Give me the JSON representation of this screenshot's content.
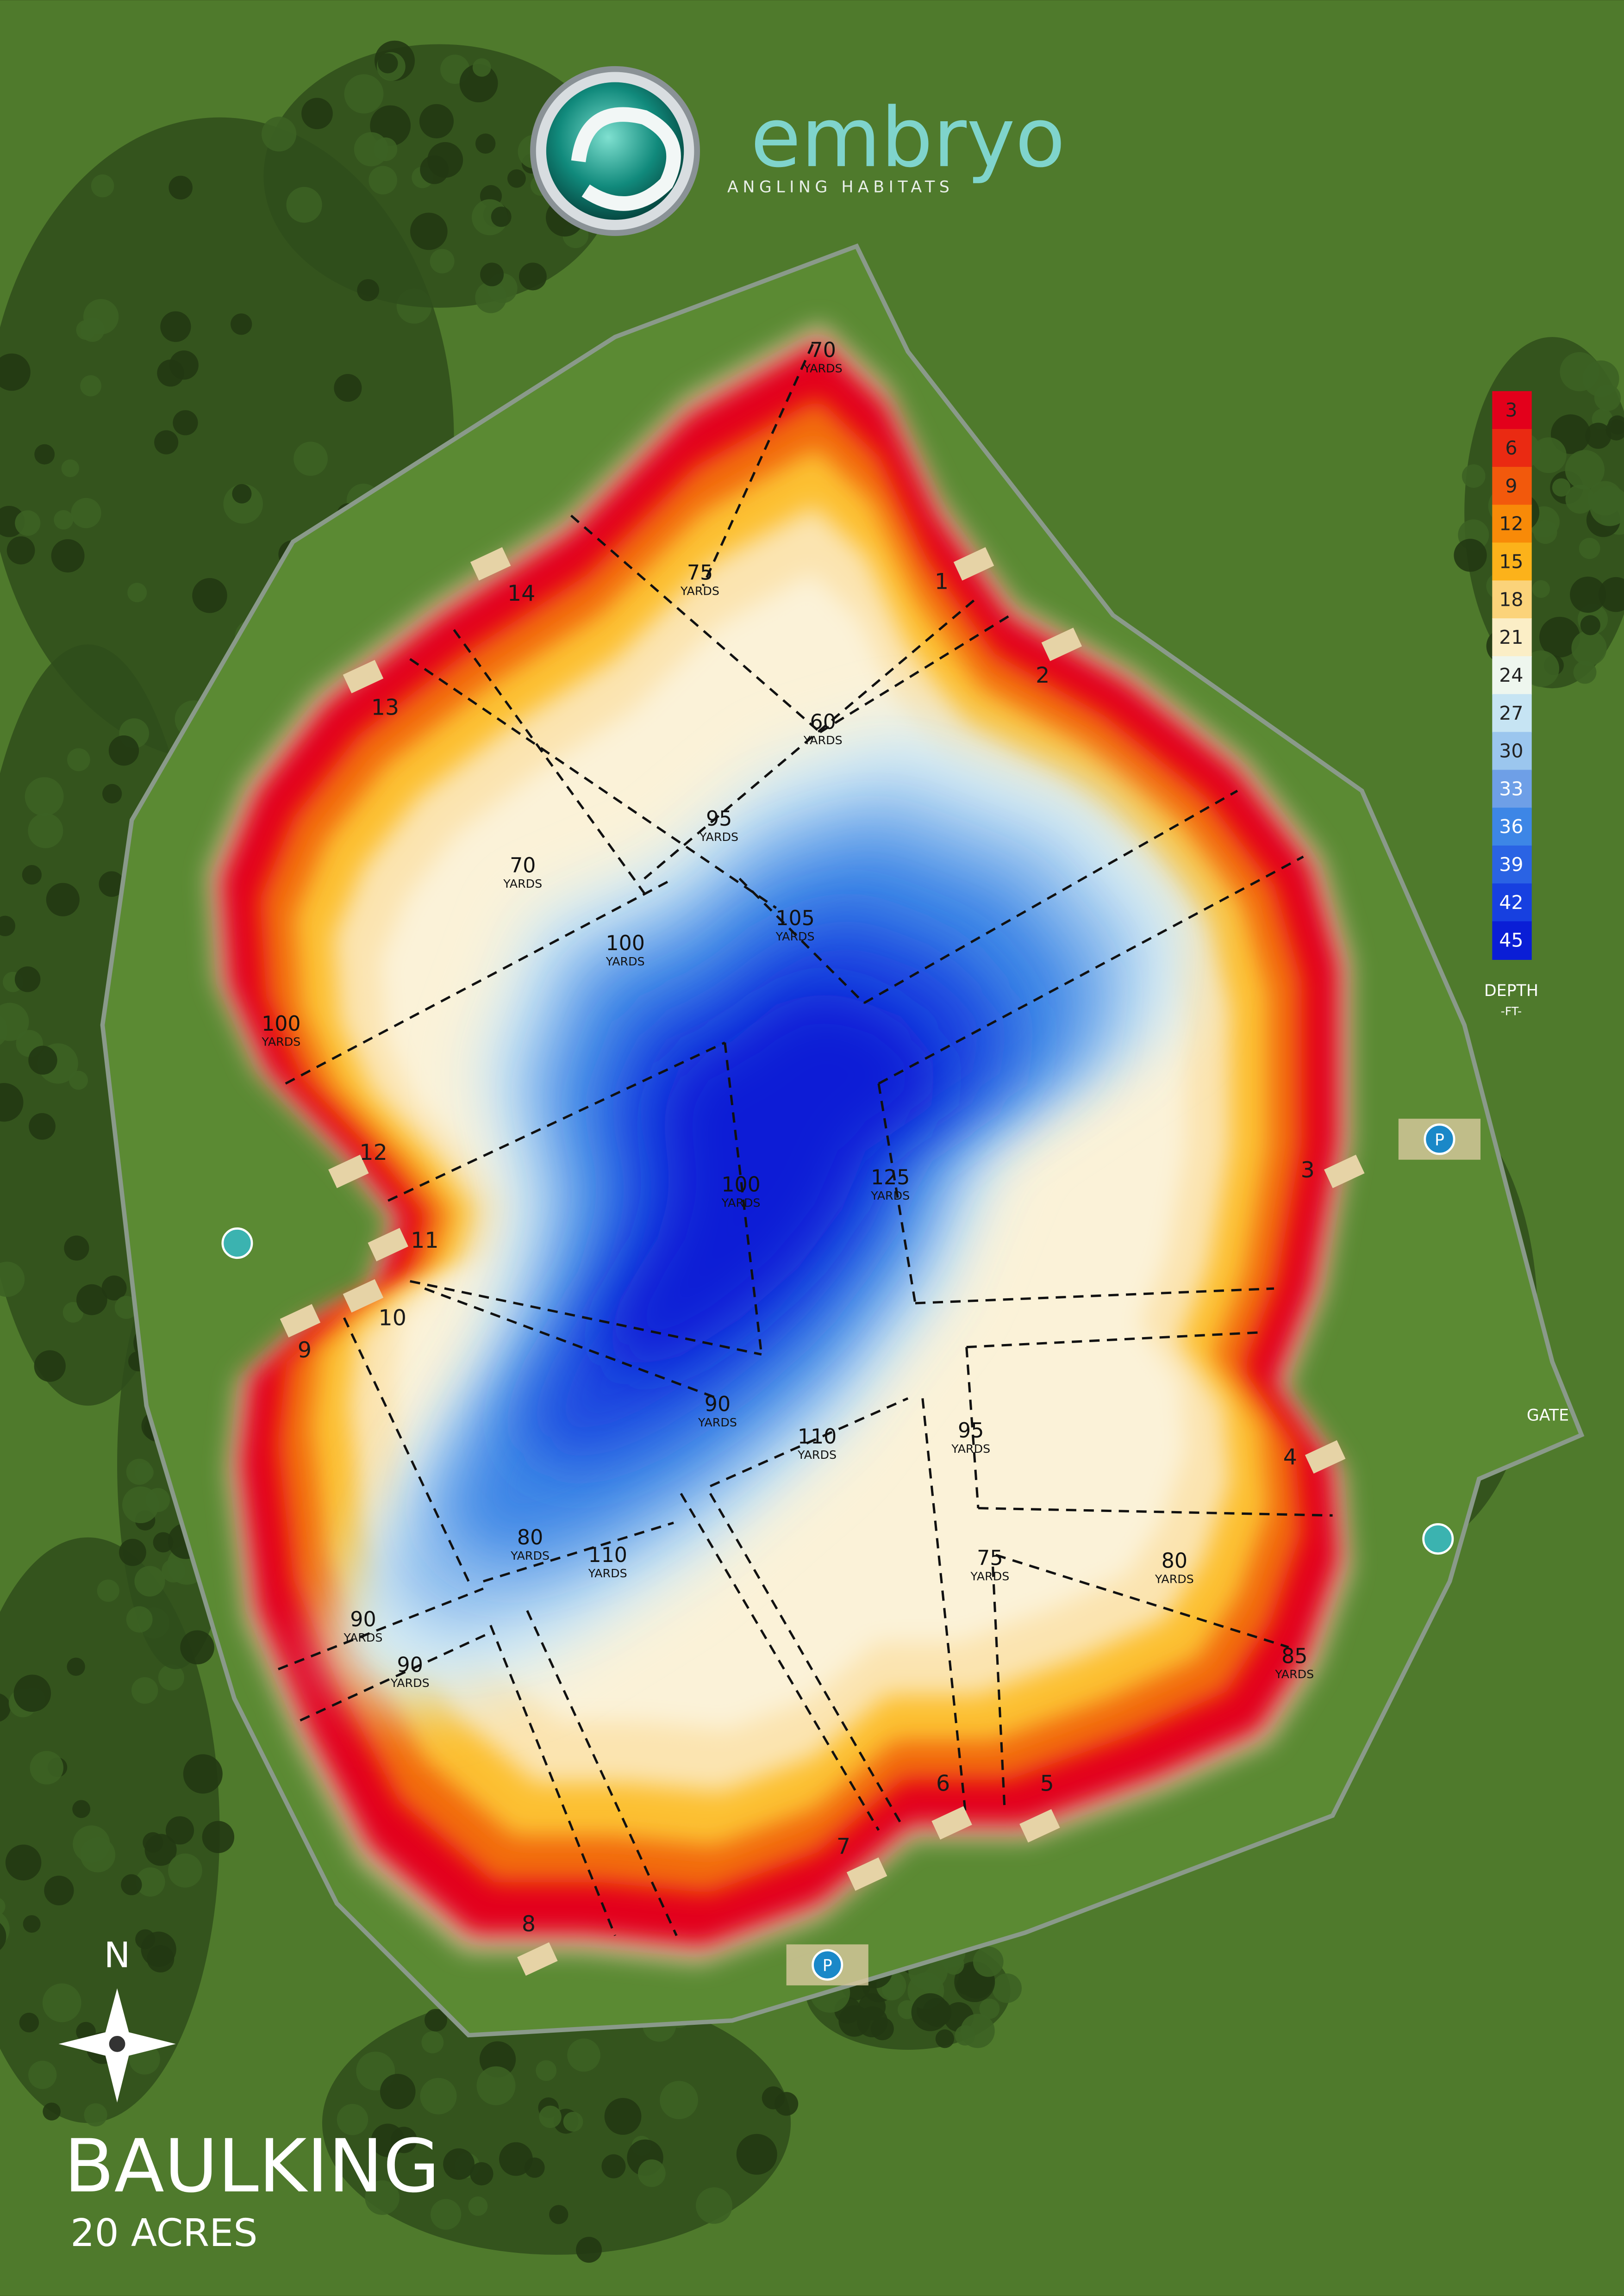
{
  "logo": {
    "name": "embryo",
    "tagline": "ANGLING HABITATS"
  },
  "legend": {
    "title": "DEPTH",
    "unit": "-FT-",
    "items": [
      {
        "value": 3,
        "color": "#e3001b"
      },
      {
        "value": 6,
        "color": "#ea2a12"
      },
      {
        "value": 9,
        "color": "#f2590c"
      },
      {
        "value": 12,
        "color": "#f88a08"
      },
      {
        "value": 15,
        "color": "#fcb21a"
      },
      {
        "value": 18,
        "color": "#fbd37a"
      },
      {
        "value": 21,
        "color": "#fbeec6"
      },
      {
        "value": 24,
        "color": "#eef6ee"
      },
      {
        "value": 27,
        "color": "#c6e4f3"
      },
      {
        "value": 30,
        "color": "#9bc6ee"
      },
      {
        "value": 33,
        "color": "#6e9fe7"
      },
      {
        "value": 36,
        "color": "#3d86e6"
      },
      {
        "value": 39,
        "color": "#2a63e4"
      },
      {
        "value": 42,
        "color": "#1740e0"
      },
      {
        "value": 45,
        "color": "#0a1ed6"
      }
    ]
  },
  "map": {
    "distance_unit": "YARDS",
    "distances": [
      70,
      75,
      60,
      95,
      70,
      100,
      105,
      100,
      100,
      125,
      90,
      110,
      95,
      80,
      110,
      75,
      80,
      90,
      90,
      85
    ],
    "swims": [
      "1",
      "2",
      "3",
      "4",
      "5",
      "6",
      "7",
      "8",
      "9",
      "10",
      "11",
      "12",
      "13",
      "14"
    ],
    "gate": "GATE",
    "parking": "P",
    "north": "N"
  },
  "footer": {
    "title": "BAULKING",
    "subtitle": "20 ACRES"
  }
}
